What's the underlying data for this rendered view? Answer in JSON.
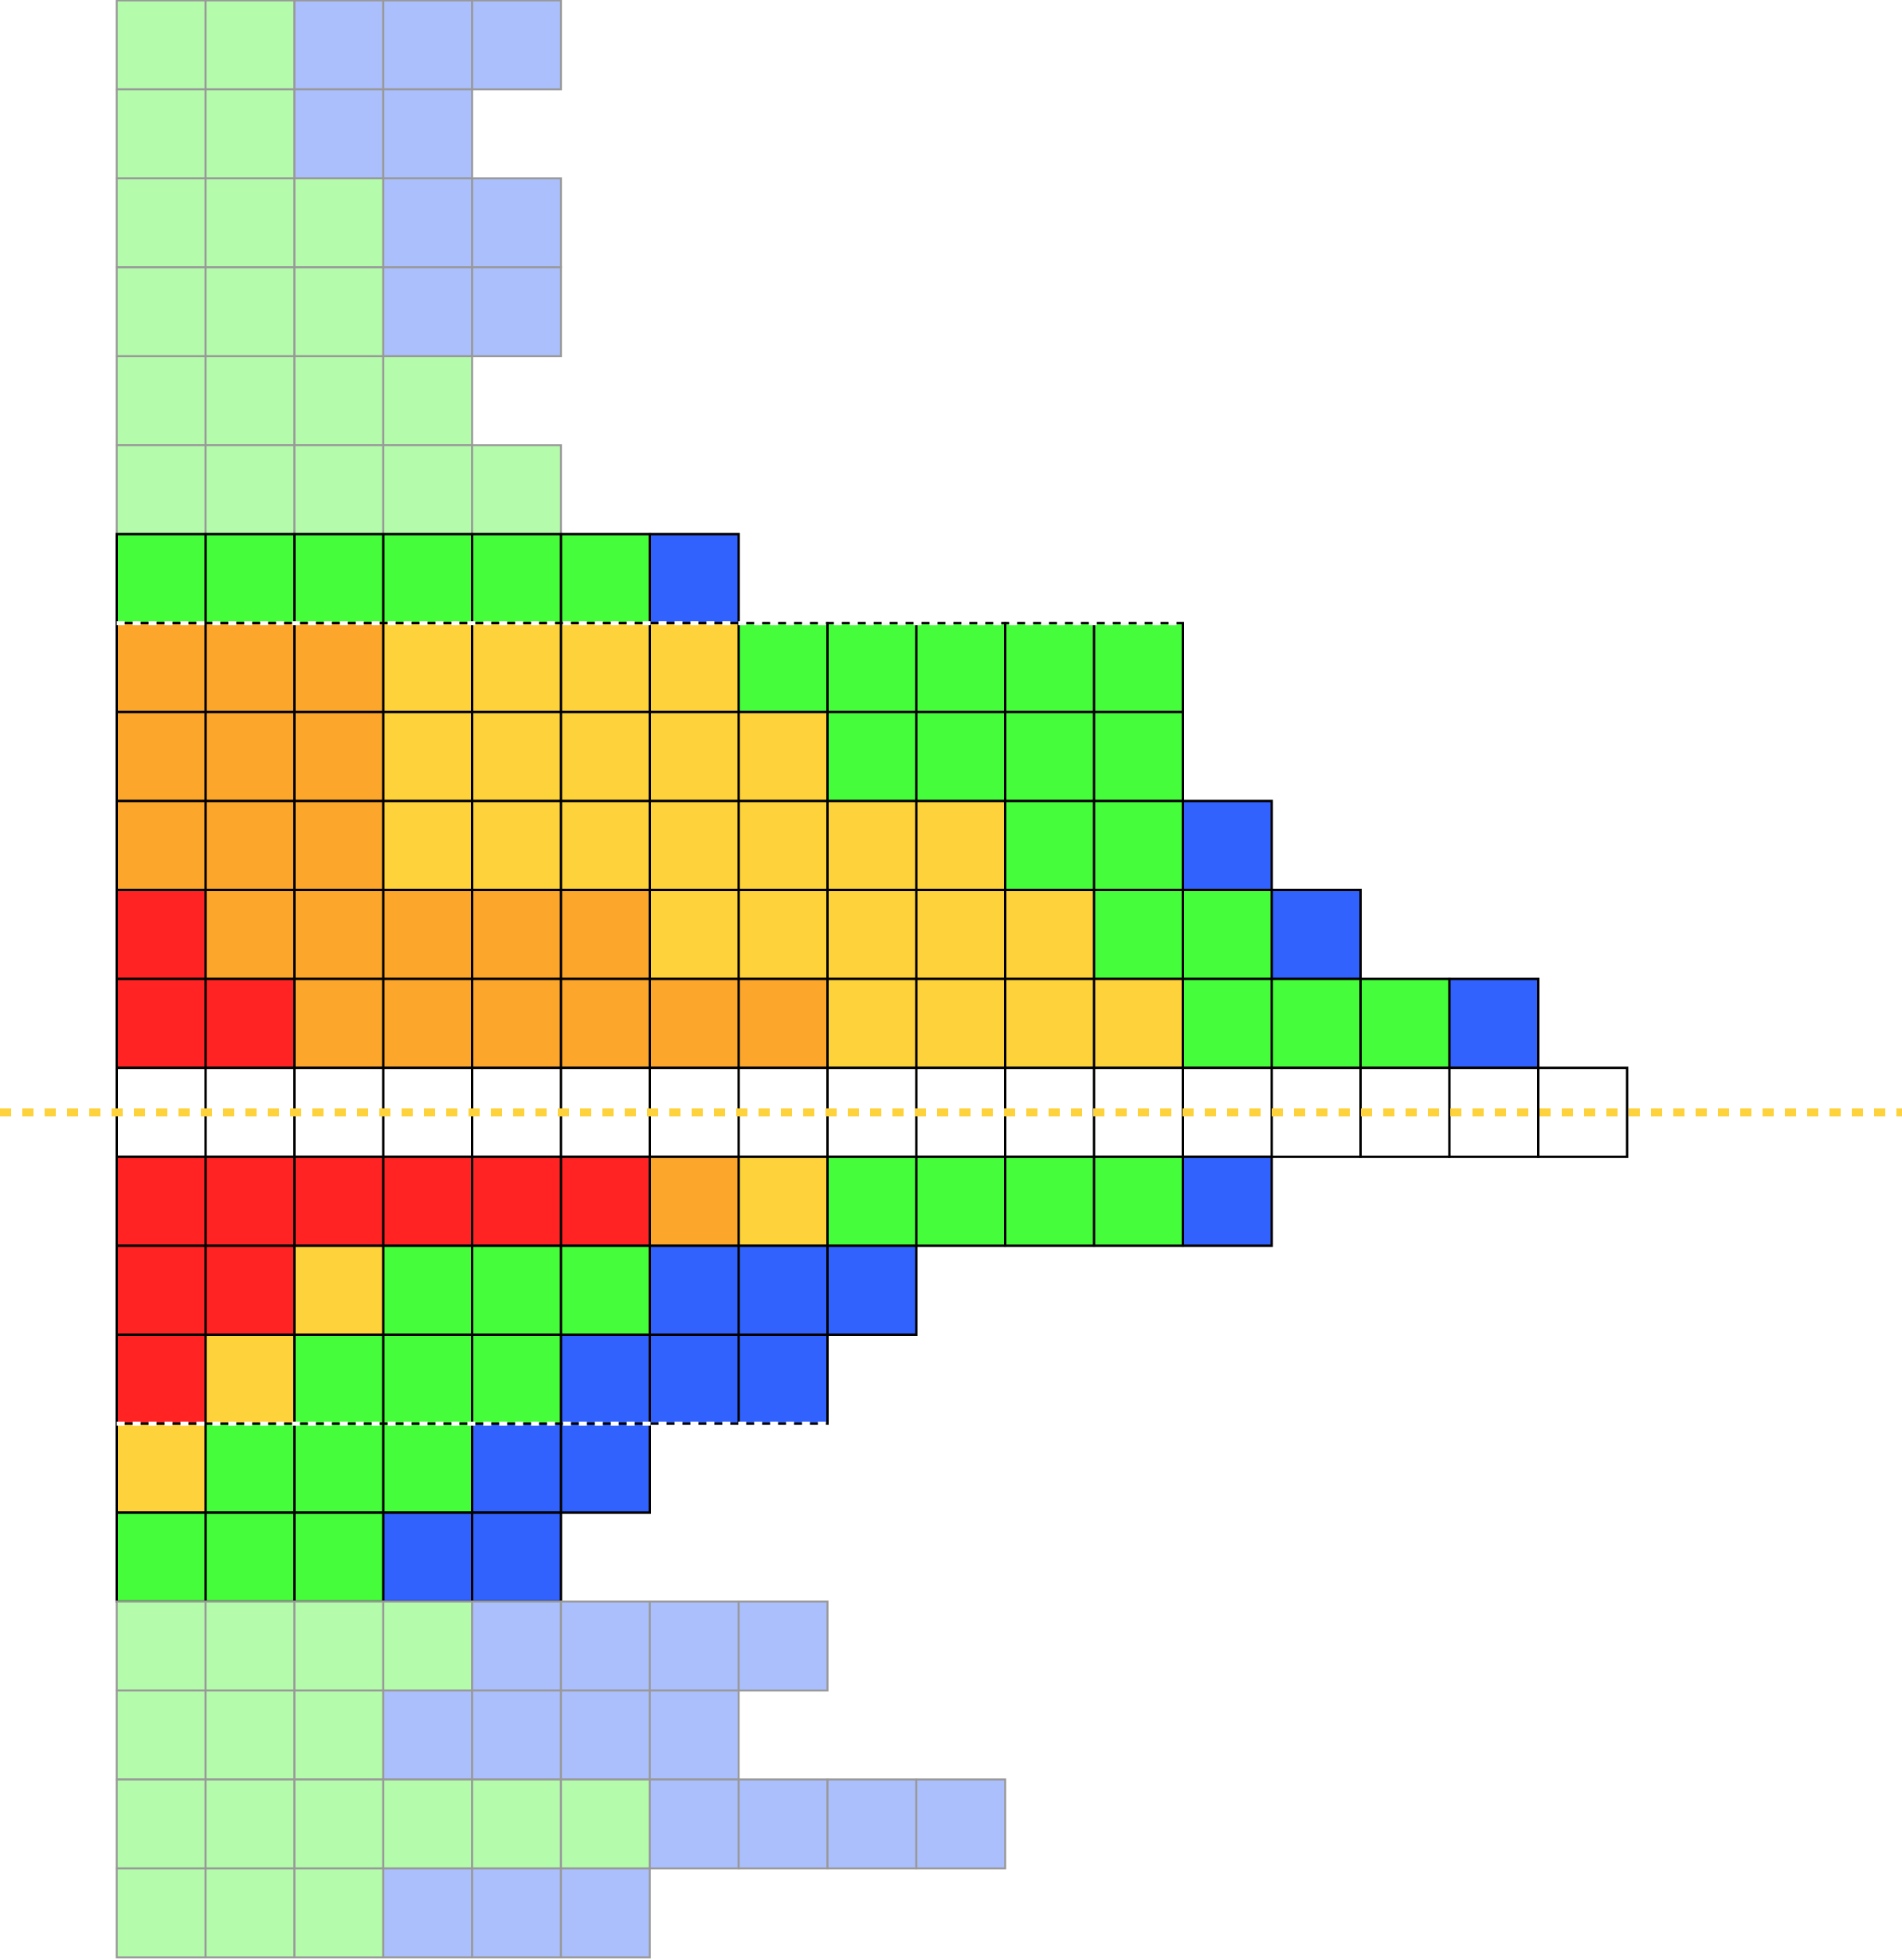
{
  "colors": {
    "R": "#ff2323",
    "O": "#fca62c",
    "Y": "#fdd23b",
    "G": "#46fd3c",
    "B": "#3162fd",
    "W": "#ffffff",
    "LG": "#b4fcac",
    "LB": "#abbffc",
    "strong_border": "#000000",
    "faded_border": "#999999",
    "highlight_line": "#fdd23b",
    "divider_dash": "#ffffff"
  },
  "rows": [
    [
      "LG",
      "LG",
      "LB",
      "LB",
      "LB"
    ],
    [
      "LG",
      "LG",
      "LB",
      "LB"
    ],
    [
      "LG",
      "LG",
      "LG",
      "LB",
      "LB"
    ],
    [
      "LG",
      "LG",
      "LG",
      "LB",
      "LB"
    ],
    [
      "LG",
      "LG",
      "LG",
      "LG"
    ],
    [
      "LG",
      "LG",
      "LG",
      "LG",
      "LG"
    ],
    [
      "G",
      "G",
      "G",
      "G",
      "G",
      "G",
      "B"
    ],
    [
      "O",
      "O",
      "O",
      "Y",
      "Y",
      "Y",
      "Y",
      "G",
      "G",
      "G",
      "G",
      "G"
    ],
    [
      "O",
      "O",
      "O",
      "Y",
      "Y",
      "Y",
      "Y",
      "Y",
      "G",
      "G",
      "G",
      "G"
    ],
    [
      "O",
      "O",
      "O",
      "Y",
      "Y",
      "Y",
      "Y",
      "Y",
      "Y",
      "Y",
      "G",
      "G",
      "B"
    ],
    [
      "R",
      "O",
      "O",
      "O",
      "O",
      "O",
      "Y",
      "Y",
      "Y",
      "Y",
      "Y",
      "G",
      "G",
      "B"
    ],
    [
      "R",
      "R",
      "O",
      "O",
      "O",
      "O",
      "O",
      "O",
      "Y",
      "Y",
      "Y",
      "Y",
      "G",
      "G",
      "G",
      "B"
    ],
    [
      "W",
      "W",
      "W",
      "W",
      "W",
      "W",
      "W",
      "W",
      "W",
      "W",
      "W",
      "W",
      "W",
      "W",
      "W",
      "W",
      "W"
    ],
    [
      "R",
      "R",
      "R",
      "R",
      "R",
      "R",
      "O",
      "Y",
      "G",
      "G",
      "G",
      "G",
      "B"
    ],
    [
      "R",
      "R",
      "Y",
      "G",
      "G",
      "G",
      "B",
      "B",
      "B"
    ],
    [
      "R",
      "Y",
      "G",
      "G",
      "G",
      "B",
      "B",
      "B"
    ],
    [
      "Y",
      "G",
      "G",
      "G",
      "B",
      "B"
    ],
    [
      "G",
      "G",
      "G",
      "B",
      "B"
    ],
    [
      "LG",
      "LG",
      "LG",
      "LG",
      "LB",
      "LB",
      "LB",
      "LB"
    ],
    [
      "LG",
      "LG",
      "LG",
      "LB",
      "LB",
      "LB",
      "LB"
    ],
    [
      "LG",
      "LG",
      "LG",
      "LG",
      "LG",
      "LG",
      "LB",
      "LB",
      "LB",
      "LB"
    ],
    [
      "LG",
      "LG",
      "LG",
      "LB",
      "LB",
      "LB"
    ]
  ]
}
